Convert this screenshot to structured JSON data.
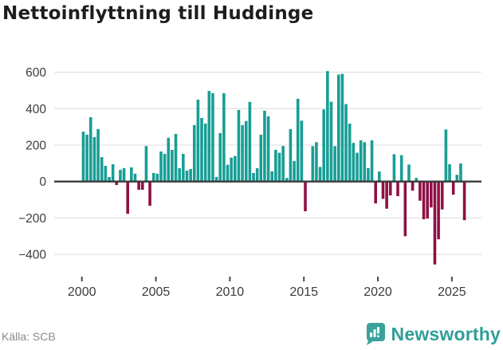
{
  "title": "Nettoinflyttning till Huddinge",
  "source": "Källa: SCB",
  "brand": {
    "name": "Newsworthy"
  },
  "colors": {
    "positive": "#179e95",
    "negative": "#8e1045",
    "grid": "#e3e3e3",
    "zero_line": "#3a3a3a",
    "axis_text": "#3c3c3c",
    "tick_mark": "#4a4a4a",
    "brand_teal": "#2f9e98",
    "badge_teal": "#3ba29b"
  },
  "chart_data": {
    "type": "bar",
    "title": "Nettoinflyttning till Huddinge",
    "xlabel": "",
    "ylabel": "",
    "frequency": "quarterly",
    "x_start": "2000 Q1",
    "x_end": "2025",
    "x_tick_labels": [
      "2000",
      "2005",
      "2010",
      "2015",
      "2020",
      "2025"
    ],
    "y_ticks": [
      600,
      400,
      200,
      0,
      -200,
      -400
    ],
    "y_tick_labels": [
      "600",
      "400",
      "200",
      "0",
      "−200",
      "−400"
    ],
    "ylim": [
      -500,
      660
    ],
    "grid": "horizontal",
    "legend": "none",
    "values": [
      274,
      257,
      353,
      244,
      288,
      134,
      86,
      25,
      95,
      -19,
      64,
      73,
      -177,
      78,
      43,
      -45,
      -45,
      195,
      -133,
      47,
      43,
      165,
      152,
      240,
      174,
      261,
      73,
      152,
      60,
      69,
      310,
      450,
      349,
      318,
      497,
      485,
      25,
      266,
      485,
      92,
      131,
      140,
      393,
      310,
      332,
      437,
      47,
      73,
      257,
      389,
      358,
      56,
      174,
      158,
      195,
      20,
      288,
      113,
      454,
      334,
      -163,
      5,
      194,
      216,
      80,
      396,
      606,
      438,
      194,
      587,
      591,
      425,
      318,
      212,
      158,
      226,
      216,
      74,
      226,
      -120,
      55,
      -95,
      -149,
      -76,
      150,
      -80,
      145,
      -300,
      93,
      -50,
      20,
      -105,
      -207,
      -203,
      -142,
      -455,
      -317,
      -153,
      286,
      95,
      -72,
      37,
      99,
      -212
    ]
  }
}
